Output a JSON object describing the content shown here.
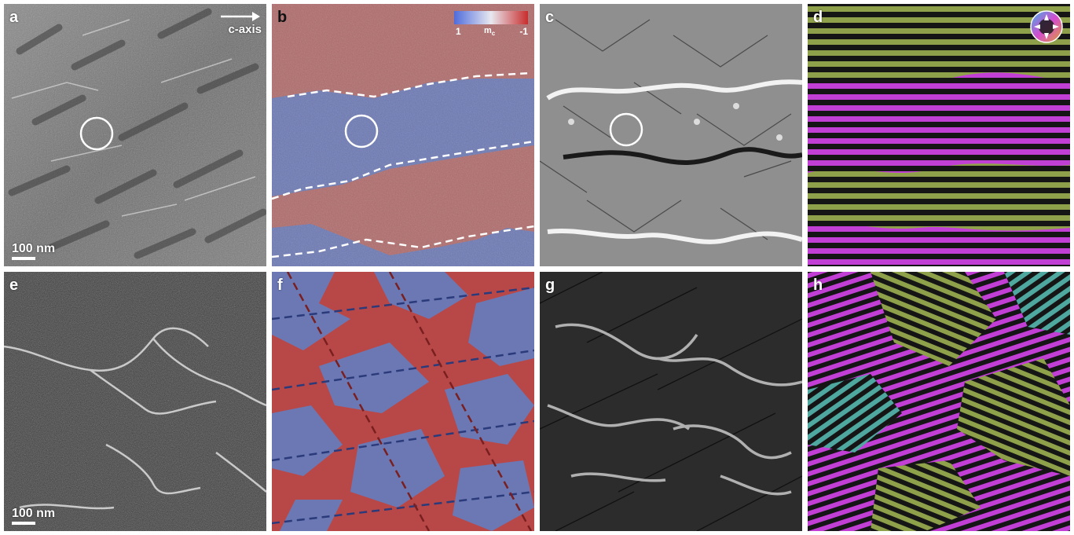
{
  "panels": {
    "a": {
      "label": "a",
      "scale_bar": "100 nm",
      "axis_label": "c-axis"
    },
    "b": {
      "label": "b",
      "colorbar": {
        "left": "1",
        "mid": "m",
        "mid_sub": "c",
        "right": "-1",
        "colors": [
          "#4f6cdc",
          "#e8e8ef",
          "#c92d2d"
        ]
      }
    },
    "c": {
      "label": "c"
    },
    "d": {
      "label": "d"
    },
    "e": {
      "label": "e",
      "scale_bar": "100 nm"
    },
    "f": {
      "label": "f"
    },
    "g": {
      "label": "g"
    },
    "h": {
      "label": "h"
    }
  },
  "colors": {
    "domain_red": "#b06a6a",
    "domain_blue": "#6b78b4",
    "stripe_magenta": "#c23fd6",
    "stripe_green": "#8fa04a"
  }
}
